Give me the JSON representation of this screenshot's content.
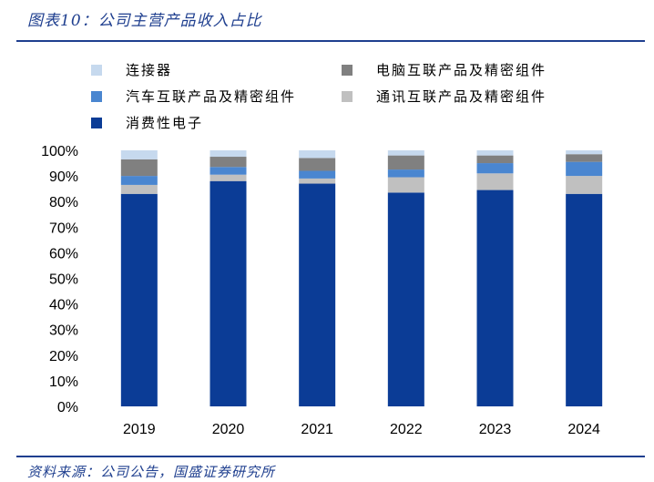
{
  "page": {
    "title": "图表10：公司主营产品收入占比",
    "source": "资料来源：公司公告，国盛证券研究所"
  },
  "chart_data": {
    "type": "bar",
    "stacked": true,
    "title": "公司主营产品收入占比",
    "xlabel": "",
    "ylabel": "",
    "ylim": [
      0,
      100
    ],
    "y_ticks": [
      "0%",
      "10%",
      "20%",
      "30%",
      "40%",
      "50%",
      "60%",
      "70%",
      "80%",
      "90%",
      "100%"
    ],
    "categories": [
      "2019",
      "2020",
      "2021",
      "2022",
      "2023",
      "2024"
    ],
    "series": [
      {
        "name": "消费性电子",
        "color": "#0b3c96",
        "values": [
          83,
          88,
          87,
          83.5,
          84.5,
          83
        ]
      },
      {
        "name": "通讯互联产品及精密组件",
        "color": "#c0c0c0",
        "values": [
          3.5,
          2.5,
          2,
          6,
          6.5,
          7
        ]
      },
      {
        "name": "汽车互联产品及精密组件",
        "color": "#4a86d0",
        "values": [
          3.5,
          3,
          3,
          3,
          4,
          5.5
        ]
      },
      {
        "name": "电脑互联产品及精密组件",
        "color": "#808080",
        "values": [
          6.5,
          4,
          5,
          5.5,
          3,
          3
        ]
      },
      {
        "name": "连接器",
        "color": "#c6d9ee",
        "values": [
          3.5,
          2.5,
          3,
          2,
          2,
          1.5
        ]
      }
    ],
    "legend": [
      {
        "label": "连接器",
        "color": "#c6d9ee"
      },
      {
        "label": "电脑互联产品及精密组件",
        "color": "#808080"
      },
      {
        "label": "汽车互联产品及精密组件",
        "color": "#4a86d0"
      },
      {
        "label": "通讯互联产品及精密组件",
        "color": "#c0c0c0"
      },
      {
        "label": "消费性电子",
        "color": "#0b3c96"
      }
    ],
    "legend_position": "top",
    "grid": false
  }
}
